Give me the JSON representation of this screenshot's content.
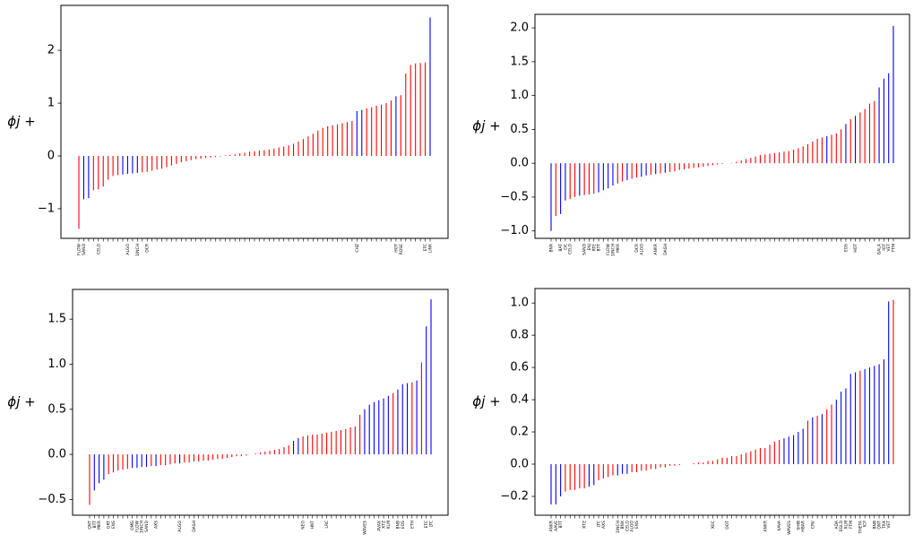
{
  "chart_data": [
    {
      "type": "bar",
      "ylabel": "ϕj +",
      "ylim": [
        -1.56,
        2.85
      ],
      "yticks": [
        {
          "value": -1,
          "label": "−1"
        },
        0,
        1,
        2
      ],
      "categories": [
        "FLOW",
        "SAND",
        null,
        null,
        "CELO",
        null,
        null,
        null,
        null,
        null,
        "ALGO",
        null,
        "1INCH",
        null,
        "DCR",
        null,
        null,
        null,
        null,
        null,
        null,
        null,
        null,
        null,
        null,
        null,
        null,
        null,
        null,
        null,
        null,
        null,
        null,
        null,
        null,
        null,
        null,
        null,
        null,
        null,
        null,
        null,
        null,
        null,
        null,
        null,
        null,
        null,
        null,
        null,
        null,
        null,
        null,
        null,
        null,
        null,
        null,
        "CHZ",
        null,
        null,
        null,
        null,
        null,
        null,
        null,
        "HOT",
        "ROSE",
        null,
        null,
        null,
        null,
        "ETC",
        "LINK"
      ],
      "values": [
        -1.38,
        -0.82,
        -0.8,
        -0.65,
        -0.63,
        -0.58,
        -0.45,
        -0.38,
        -0.36,
        -0.35,
        -0.34,
        -0.33,
        -0.32,
        -0.31,
        -0.3,
        -0.28,
        -0.26,
        -0.24,
        -0.21,
        -0.18,
        -0.15,
        -0.12,
        -0.1,
        -0.08,
        -0.06,
        -0.05,
        -0.04,
        -0.03,
        -0.02,
        -0.01,
        0.01,
        0.02,
        0.03,
        0.05,
        0.06,
        0.08,
        0.09,
        0.1,
        0.11,
        0.12,
        0.14,
        0.16,
        0.18,
        0.2,
        0.23,
        0.27,
        0.32,
        0.37,
        0.42,
        0.48,
        0.53,
        0.56,
        0.58,
        0.6,
        0.62,
        0.64,
        0.66,
        0.85,
        0.87,
        0.9,
        0.92,
        0.95,
        0.97,
        1.0,
        1.05,
        1.13,
        1.15,
        1.56,
        1.72,
        1.75,
        1.76,
        1.77,
        2.62
      ],
      "colors": [
        "red",
        "blue",
        "blue",
        "red",
        "red",
        "red",
        "red",
        "red",
        "red",
        "blue",
        "blue",
        "blue",
        "blue",
        "red",
        "red",
        "red",
        "red",
        "red",
        "red",
        "red",
        "red",
        "red",
        "red",
        "red",
        "red",
        "red",
        "red",
        "red",
        "red",
        "red",
        "red",
        "red",
        "red",
        "red",
        "red",
        "red",
        "red",
        "red",
        "red",
        "red",
        "red",
        "red",
        "red",
        "red",
        "red",
        "red",
        "red",
        "red",
        "red",
        "red",
        "red",
        "red",
        "red",
        "red",
        "red",
        "red",
        "red",
        "blue",
        "blue",
        "red",
        "red",
        "red",
        "red",
        "red",
        "red",
        "blue",
        "red",
        "red",
        "red",
        "red",
        "red",
        "red",
        "blue"
      ]
    },
    {
      "type": "bar",
      "ylabel": "ϕj +",
      "ylim": [
        -1.11,
        2.2
      ],
      "yticks": [
        {
          "value": -1,
          "label": "−1.0"
        },
        {
          "value": -0.5,
          "label": "−0.5"
        },
        {
          "value": 0,
          "label": "0.0"
        },
        0.5,
        {
          "value": 1,
          "label": "1.0"
        },
        1.5,
        {
          "value": 2,
          "label": "2.0"
        }
      ],
      "categories": [
        "BNX",
        null,
        "BAT",
        "OC",
        "CELO",
        null,
        null,
        "SAND",
        "ENJ",
        "RTE",
        "BTT",
        null,
        "FLOW",
        "1INCH",
        "MKR",
        null,
        null,
        null,
        "DCR",
        "ALGO",
        null,
        null,
        "ANKR",
        null,
        "DASH",
        null,
        null,
        null,
        null,
        null,
        null,
        null,
        null,
        null,
        null,
        null,
        null,
        null,
        null,
        null,
        null,
        null,
        null,
        null,
        null,
        null,
        null,
        null,
        null,
        null,
        null,
        null,
        null,
        null,
        null,
        null,
        null,
        null,
        null,
        null,
        null,
        null,
        "EOS",
        null,
        "HOT",
        null,
        null,
        null,
        null,
        "GALA",
        "IOT",
        "VET",
        "FTM"
      ],
      "values": [
        -1.0,
        -0.78,
        -0.75,
        -0.55,
        -0.53,
        -0.5,
        -0.48,
        -0.47,
        -0.46,
        -0.45,
        -0.43,
        -0.4,
        -0.37,
        -0.33,
        -0.3,
        -0.27,
        -0.25,
        -0.23,
        -0.21,
        -0.2,
        -0.18,
        -0.17,
        -0.16,
        -0.15,
        -0.14,
        -0.13,
        -0.12,
        -0.1,
        -0.09,
        -0.08,
        -0.07,
        -0.06,
        -0.05,
        -0.04,
        -0.03,
        -0.02,
        -0.01,
        0.0,
        0.005,
        0.02,
        0.04,
        0.06,
        0.08,
        0.1,
        0.12,
        0.13,
        0.14,
        0.15,
        0.16,
        0.17,
        0.18,
        0.2,
        0.22,
        0.25,
        0.28,
        0.32,
        0.36,
        0.38,
        0.4,
        0.42,
        0.44,
        0.5,
        0.58,
        0.65,
        0.7,
        0.75,
        0.8,
        0.88,
        0.92,
        1.12,
        1.25,
        1.33,
        2.03
      ],
      "colors": [
        "blue",
        "red",
        "blue",
        "blue",
        "red",
        "red",
        "blue",
        "red",
        "red",
        "red",
        "blue",
        "blue",
        "blue",
        "blue",
        "red",
        "red",
        "blue",
        "red",
        "red",
        "blue",
        "blue",
        "red",
        "blue",
        "red",
        "blue",
        "red",
        "red",
        "red",
        "red",
        "red",
        "red",
        "red",
        "red",
        "red",
        "red",
        "red",
        "red",
        "red",
        "red",
        "red",
        "red",
        "red",
        "red",
        "red",
        "red",
        "red",
        "red",
        "red",
        "red",
        "red",
        "red",
        "red",
        "red",
        "red",
        "red",
        "red",
        "red",
        "red",
        "blue",
        "red",
        "red",
        "red",
        "blue",
        "red",
        "blue",
        "red",
        "red",
        "red",
        "red",
        "blue",
        "blue",
        "blue",
        "blue"
      ]
    },
    {
      "type": "bar",
      "ylabel": "ϕj +",
      "ylim": [
        -0.675,
        1.83
      ],
      "yticks": [
        {
          "value": -0.5,
          "label": "−0.5"
        },
        {
          "value": 0,
          "label": "0.0"
        },
        0.5,
        {
          "value": 1,
          "label": "1.0"
        },
        1.5
      ],
      "categories": [
        "QNT",
        "BTT",
        "MKR",
        null,
        "GRT",
        "ENS",
        null,
        null,
        null,
        "OMG",
        "FLOW",
        "1INCH",
        "SAND",
        null,
        "AXS",
        null,
        null,
        null,
        null,
        "ALGO",
        null,
        null,
        "DASH",
        null,
        null,
        null,
        null,
        null,
        null,
        null,
        null,
        null,
        null,
        null,
        null,
        null,
        null,
        null,
        null,
        null,
        null,
        null,
        null,
        null,
        null,
        "NEO",
        null,
        "HNT",
        null,
        null,
        "LRC",
        null,
        null,
        null,
        null,
        null,
        null,
        null,
        "WAVES",
        null,
        null,
        "AVAX",
        "XTZ",
        "XLM",
        null,
        "BNB",
        "EOS",
        null,
        "ETH",
        null,
        null,
        "ETC",
        "LTC"
      ],
      "values": [
        -0.56,
        -0.4,
        -0.32,
        -0.28,
        -0.22,
        -0.2,
        -0.18,
        -0.17,
        -0.16,
        -0.15,
        -0.15,
        -0.14,
        -0.14,
        -0.13,
        -0.13,
        -0.12,
        -0.12,
        -0.11,
        -0.1,
        -0.1,
        -0.09,
        -0.09,
        -0.08,
        -0.08,
        -0.07,
        -0.07,
        -0.06,
        -0.05,
        -0.05,
        -0.04,
        -0.03,
        -0.02,
        -0.02,
        -0.01,
        0,
        0.01,
        0.02,
        0.03,
        0.04,
        0.05,
        0.06,
        0.08,
        0.1,
        0.15,
        0.18,
        0.2,
        0.21,
        0.22,
        0.22,
        0.23,
        0.24,
        0.25,
        0.26,
        0.27,
        0.28,
        0.3,
        0.31,
        0.44,
        0.5,
        0.55,
        0.58,
        0.6,
        0.62,
        0.65,
        0.68,
        0.72,
        0.78,
        0.79,
        0.8,
        0.82,
        1.02,
        1.42,
        1.72
      ],
      "colors": [
        "red",
        "blue",
        "blue",
        "blue",
        "red",
        "red",
        "red",
        "red",
        "red",
        "blue",
        "blue",
        "blue",
        "blue",
        "red",
        "blue",
        "red",
        "red",
        "red",
        "red",
        "blue",
        "red",
        "red",
        "red",
        "red",
        "red",
        "red",
        "red",
        "red",
        "red",
        "red",
        "red",
        "red",
        "red",
        "red",
        "red",
        "red",
        "red",
        "red",
        "red",
        "red",
        "red",
        "red",
        "red",
        "blue",
        "blue",
        "red",
        "red",
        "red",
        "red",
        "red",
        "red",
        "red",
        "red",
        "red",
        "red",
        "red",
        "red",
        "red",
        "blue",
        "blue",
        "blue",
        "blue",
        "blue",
        "blue",
        "red",
        "blue",
        "blue",
        "blue",
        "red",
        "blue",
        "red",
        "blue",
        "blue"
      ]
    },
    {
      "type": "bar",
      "ylabel": "ϕj +",
      "ylim": [
        -0.317,
        1.09
      ],
      "yticks": [
        {
          "value": -0.2,
          "label": "−0.2"
        },
        {
          "value": 0,
          "label": "0.0"
        },
        0.2,
        0.4,
        0.6,
        0.8,
        {
          "value": 1,
          "label": "1.0"
        }
      ],
      "categories": [
        "ANKR",
        "AAVE",
        "BTT",
        null,
        null,
        null,
        null,
        "XTZ",
        null,
        null,
        "LTC",
        "AXS",
        null,
        null,
        "1INCH",
        "BNX",
        "CELO",
        "ALGO",
        "ENS",
        null,
        null,
        null,
        null,
        null,
        null,
        null,
        null,
        null,
        null,
        null,
        null,
        null,
        null,
        null,
        "XEC",
        null,
        null,
        "DOT",
        null,
        null,
        null,
        null,
        null,
        null,
        null,
        "ANKR",
        null,
        null,
        "KAVA",
        null,
        "WAVES",
        null,
        "SHIB",
        "HBAR",
        null,
        "CRV",
        null,
        null,
        null,
        null,
        "ADA",
        "EGLD",
        "XLM",
        "FTM",
        null,
        "THETA",
        "ICP",
        null,
        "BNB",
        "QNT",
        "TRX",
        "VET",
        null
      ],
      "values": [
        -0.25,
        -0.25,
        -0.2,
        -0.17,
        -0.16,
        -0.16,
        -0.15,
        -0.15,
        -0.14,
        -0.13,
        -0.1,
        -0.09,
        -0.08,
        -0.07,
        -0.07,
        -0.06,
        -0.06,
        -0.05,
        -0.05,
        -0.04,
        -0.04,
        -0.03,
        -0.03,
        -0.02,
        -0.02,
        -0.01,
        -0.01,
        -0.005,
        0,
        0,
        0.005,
        0.01,
        0.01,
        0.02,
        0.02,
        0.03,
        0.04,
        0.04,
        0.05,
        0.05,
        0.06,
        0.07,
        0.08,
        0.09,
        0.1,
        0.1,
        0.12,
        0.14,
        0.15,
        0.16,
        0.17,
        0.18,
        0.2,
        0.22,
        0.27,
        0.29,
        0.3,
        0.31,
        0.34,
        0.37,
        0.4,
        0.45,
        0.47,
        0.56,
        0.57,
        0.58,
        0.59,
        0.6,
        0.61,
        0.62,
        0.65,
        1.01,
        1.02
      ],
      "colors": [
        "blue",
        "blue",
        "blue",
        "red",
        "red",
        "red",
        "red",
        "red",
        "blue",
        "blue",
        "red",
        "red",
        "red",
        "red",
        "blue",
        "blue",
        "blue",
        "red",
        "red",
        "red",
        "red",
        "red",
        "red",
        "red",
        "red",
        "red",
        "red",
        "red",
        "red",
        "red",
        "red",
        "red",
        "red",
        "red",
        "red",
        "red",
        "red",
        "red",
        "red",
        "red",
        "red",
        "red",
        "red",
        "red",
        "red",
        "red",
        "red",
        "red",
        "red",
        "blue",
        "blue",
        "blue",
        "blue",
        "blue",
        "red",
        "blue",
        "red",
        "blue",
        "red",
        "red",
        "blue",
        "blue",
        "blue",
        "blue",
        "blue",
        "red",
        "blue",
        "blue",
        "blue",
        "blue",
        "blue",
        "blue",
        "red"
      ]
    }
  ]
}
